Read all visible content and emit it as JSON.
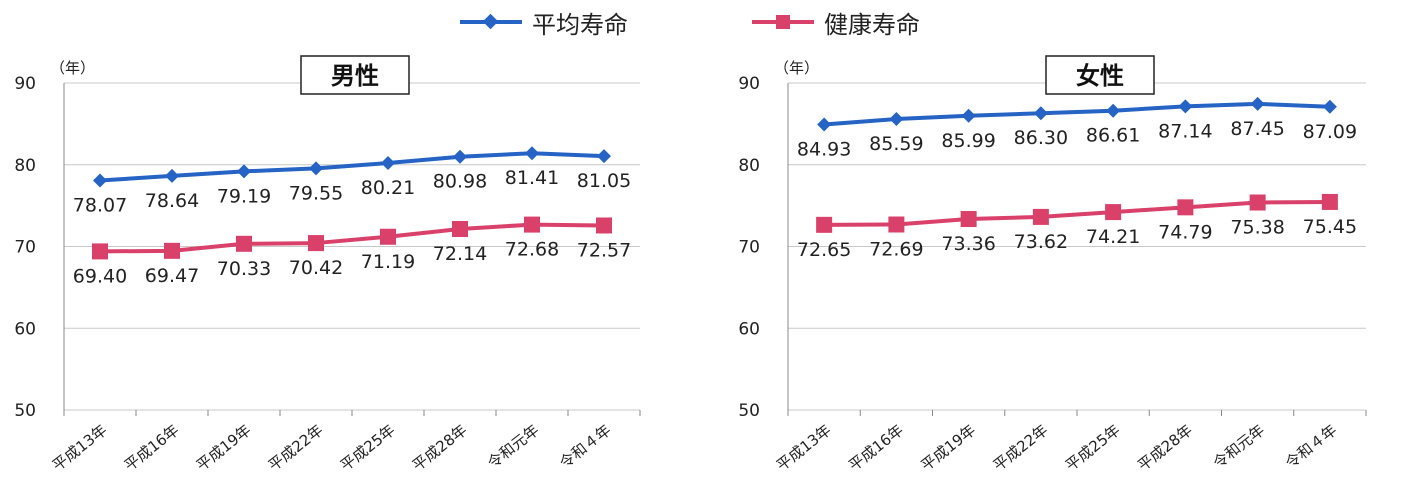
{
  "chart_data": {
    "type": "line",
    "legend": {
      "placement": "top-center",
      "items": [
        {
          "name": "平均寿命",
          "color": "#2563c4",
          "marker": "diamond"
        },
        {
          "name": "健康寿命",
          "color": "#d9416a",
          "marker": "square"
        }
      ]
    },
    "categories": [
      "平成13年",
      "平成16年",
      "平成19年",
      "平成22年",
      "平成25年",
      "平成28年",
      "令和元年",
      "令和４年"
    ],
    "ylim": [
      50,
      90
    ],
    "yticks": [
      50,
      60,
      70,
      80,
      90
    ],
    "yunit": "（年）",
    "grid": true,
    "panels": [
      {
        "title": "男性",
        "series": [
          {
            "name": "平均寿命",
            "values": [
              "78.07",
              "78.64",
              "79.19",
              "79.55",
              "80.21",
              "80.98",
              "81.41",
              "81.05"
            ]
          },
          {
            "name": "健康寿命",
            "values": [
              "69.40",
              "69.47",
              "70.33",
              "70.42",
              "71.19",
              "72.14",
              "72.68",
              "72.57"
            ]
          }
        ]
      },
      {
        "title": "女性",
        "series": [
          {
            "name": "平均寿命",
            "values": [
              "84.93",
              "85.59",
              "85.99",
              "86.30",
              "86.61",
              "87.14",
              "87.45",
              "87.09"
            ]
          },
          {
            "name": "健康寿命",
            "values": [
              "72.65",
              "72.69",
              "73.36",
              "73.62",
              "74.21",
              "74.79",
              "75.38",
              "75.45"
            ]
          }
        ]
      }
    ]
  }
}
